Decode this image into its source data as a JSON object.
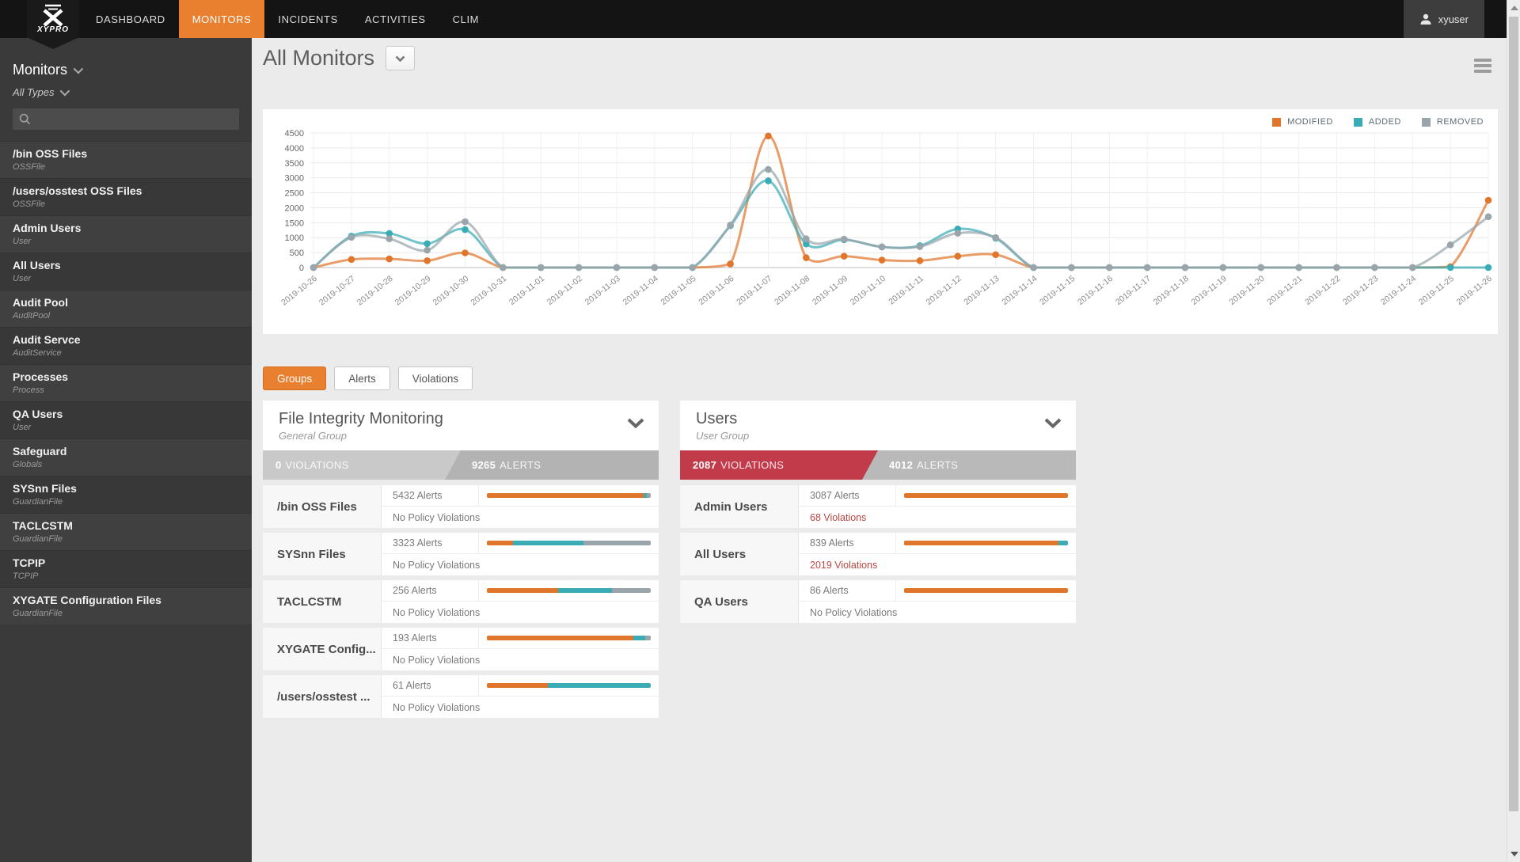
{
  "nav": {
    "brand": "XYPRO",
    "items": [
      {
        "label": "DASHBOARD",
        "active": false
      },
      {
        "label": "MONITORS",
        "active": true
      },
      {
        "label": "INCIDENTS",
        "active": false
      },
      {
        "label": "ACTIVITIES",
        "active": false
      },
      {
        "label": "CLIM",
        "active": false
      }
    ],
    "user": "xyuser"
  },
  "sidebar": {
    "header": "Monitors",
    "type_filter": "All Types",
    "search_placeholder": "",
    "items": [
      {
        "name": "/bin OSS Files",
        "type": "OSSFile"
      },
      {
        "name": "/users/osstest OSS Files",
        "type": "OSSFile"
      },
      {
        "name": "Admin Users",
        "type": "User"
      },
      {
        "name": "All Users",
        "type": "User"
      },
      {
        "name": "Audit Pool",
        "type": "AuditPool"
      },
      {
        "name": "Audit Servce",
        "type": "AuditService"
      },
      {
        "name": "Processes",
        "type": "Process"
      },
      {
        "name": "QA Users",
        "type": "User"
      },
      {
        "name": "Safeguard",
        "type": "Globals"
      },
      {
        "name": "SYSnn Files",
        "type": "GuardianFile"
      },
      {
        "name": "TACLCSTM",
        "type": "GuardianFile"
      },
      {
        "name": "TCPIP",
        "type": "TCPIP"
      },
      {
        "name": "XYGATE Configuration Files",
        "type": "GuardianFile"
      }
    ]
  },
  "main": {
    "title": "All Monitors",
    "tabs": [
      {
        "label": "Groups",
        "active": true
      },
      {
        "label": "Alerts",
        "active": false
      },
      {
        "label": "Violations",
        "active": false
      }
    ]
  },
  "colors": {
    "modified": "#e0762c",
    "added": "#3aacb5",
    "removed": "#99a5ab",
    "violation_red": "#c23b4a",
    "banner_gray": "#b3b3b3",
    "banner_light_gray": "#c9c9c9",
    "accent_orange": "#e8802f"
  },
  "chart_data": {
    "type": "line",
    "title": "",
    "xlabel": "",
    "ylabel": "",
    "ylim": [
      0,
      4500
    ],
    "ytick": 500,
    "grid": true,
    "legend_position": "top-right",
    "x": [
      "2019-10-26",
      "2019-10-27",
      "2019-10-28",
      "2019-10-29",
      "2019-10-30",
      "2019-10-31",
      "2019-11-01",
      "2019-11-02",
      "2019-11-03",
      "2019-11-04",
      "2019-11-05",
      "2019-11-06",
      "2019-11-07",
      "2019-11-08",
      "2019-11-09",
      "2019-11-10",
      "2019-11-11",
      "2019-11-12",
      "2019-11-13",
      "2019-11-14",
      "2019-11-15",
      "2019-11-16",
      "2019-11-17",
      "2019-11-18",
      "2019-11-19",
      "2019-11-20",
      "2019-11-21",
      "2019-11-22",
      "2019-11-23",
      "2019-11-24",
      "2019-11-25",
      "2019-11-26"
    ],
    "series": [
      {
        "name": "MODIFIED",
        "key": "modified",
        "values": [
          0,
          270,
          290,
          230,
          490,
          0,
          0,
          0,
          0,
          0,
          0,
          120,
          4400,
          330,
          380,
          250,
          230,
          380,
          430,
          0,
          0,
          0,
          0,
          0,
          0,
          0,
          0,
          0,
          0,
          0,
          30,
          2250
        ]
      },
      {
        "name": "ADDED",
        "key": "added",
        "values": [
          0,
          1050,
          1140,
          800,
          1270,
          0,
          0,
          0,
          0,
          0,
          0,
          1400,
          2900,
          790,
          930,
          690,
          730,
          1290,
          980,
          0,
          0,
          0,
          0,
          0,
          0,
          0,
          0,
          0,
          0,
          0,
          0,
          0
        ]
      },
      {
        "name": "REMOVED",
        "key": "removed",
        "values": [
          0,
          1010,
          960,
          580,
          1530,
          0,
          0,
          0,
          0,
          0,
          0,
          1420,
          3280,
          960,
          950,
          690,
          700,
          1150,
          1000,
          0,
          0,
          0,
          0,
          0,
          0,
          0,
          0,
          0,
          0,
          0,
          760,
          1700
        ]
      }
    ]
  },
  "groups": [
    {
      "title": "File Integrity Monitoring",
      "subtitle": "General Group",
      "banner": {
        "violations_value": "0",
        "violations_label": "VIOLATIONS",
        "alerts_value": "9265",
        "alerts_label": "ALERTS",
        "left_bg": "#c9c9c9",
        "right_bg": "#b3b3b3"
      },
      "rows": [
        {
          "name": "/bin OSS Files",
          "alerts": "5432 Alerts",
          "violations": "No Policy Violations",
          "violations_red": false,
          "bar": {
            "modified": 0.955,
            "added": 0.022,
            "removed": 0.023
          }
        },
        {
          "name": "SYSnn Files",
          "alerts": "3323 Alerts",
          "violations": "No Policy Violations",
          "violations_red": false,
          "bar": {
            "modified": 0.16,
            "added": 0.43,
            "removed": 0.41
          }
        },
        {
          "name": "TACLCSTM",
          "alerts": "256 Alerts",
          "violations": "No Policy Violations",
          "violations_red": false,
          "bar": {
            "modified": 0.435,
            "added": 0.33,
            "removed": 0.235
          }
        },
        {
          "name": "XYGATE Config...",
          "alerts": "193 Alerts",
          "violations": "No Policy Violations",
          "violations_red": false,
          "bar": {
            "modified": 0.895,
            "added": 0.07,
            "removed": 0.035
          }
        },
        {
          "name": "/users/osstest ...",
          "alerts": "61 Alerts",
          "violations": "No Policy Violations",
          "violations_red": false,
          "bar": {
            "modified": 0.37,
            "added": 0.63,
            "removed": 0
          }
        }
      ]
    },
    {
      "title": "Users",
      "subtitle": "User Group",
      "banner": {
        "violations_value": "2087",
        "violations_label": "VIOLATIONS",
        "alerts_value": "4012",
        "alerts_label": "ALERTS",
        "left_bg": "#c23b4a",
        "right_bg": "#b9b9b9"
      },
      "rows": [
        {
          "name": "Admin Users",
          "alerts": "3087 Alerts",
          "violations": "68 Violations",
          "violations_red": true,
          "bar": {
            "modified": 1,
            "added": 0,
            "removed": 0
          }
        },
        {
          "name": "All Users",
          "alerts": "839 Alerts",
          "violations": "2019 Violations",
          "violations_red": true,
          "bar": {
            "modified": 0.94,
            "added": 0.06,
            "removed": 0
          }
        },
        {
          "name": "QA Users",
          "alerts": "86 Alerts",
          "violations": "No Policy Violations",
          "violations_red": false,
          "bar": {
            "modified": 1,
            "added": 0,
            "removed": 0
          }
        }
      ]
    }
  ]
}
